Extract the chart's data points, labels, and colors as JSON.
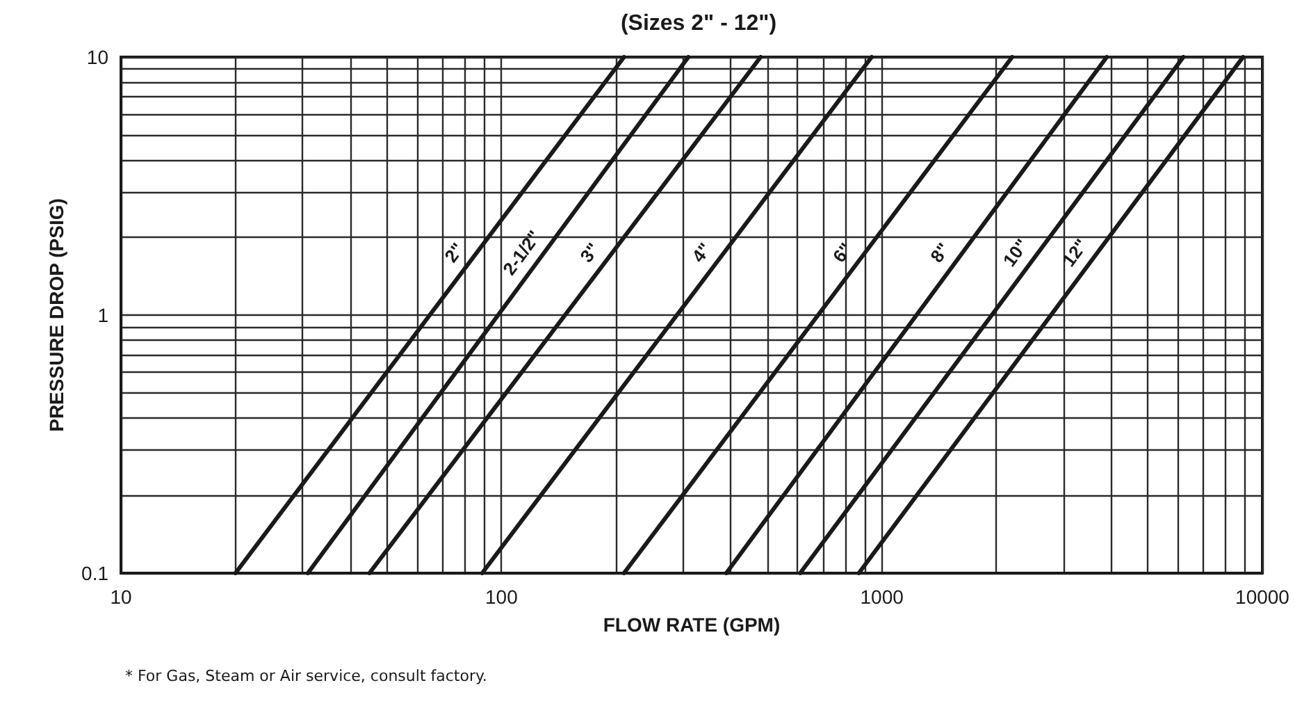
{
  "chart_data": {
    "type": "line",
    "title": "(Sizes 2\" - 12\")",
    "xlabel": "FLOW RATE (GPM)",
    "ylabel": "PRESSURE DROP (PSIG)",
    "annotations": [
      "* For Gas, Steam or Air service, consult factory."
    ],
    "log": "xy",
    "grid": true,
    "xlim": [
      10,
      10000
    ],
    "ylim": [
      0.1,
      10
    ],
    "xticks": [
      10,
      {
        "value": 20,
        "label": null
      },
      {
        "value": 30,
        "label": null
      },
      {
        "value": 40,
        "label": null
      },
      {
        "value": 50,
        "label": null
      },
      {
        "value": 60,
        "label": null
      },
      {
        "value": 70,
        "label": null
      },
      {
        "value": 80,
        "label": null
      },
      {
        "value": 90,
        "label": null
      },
      100,
      {
        "value": 200,
        "label": null
      },
      {
        "value": 300,
        "label": null
      },
      {
        "value": 400,
        "label": null
      },
      {
        "value": 500,
        "label": null
      },
      {
        "value": 600,
        "label": null
      },
      {
        "value": 700,
        "label": null
      },
      {
        "value": 800,
        "label": null
      },
      {
        "value": 900,
        "label": null
      },
      1000,
      {
        "value": 2000,
        "label": null
      },
      {
        "value": 3000,
        "label": null
      },
      {
        "value": 4000,
        "label": null
      },
      {
        "value": 5000,
        "label": null
      },
      {
        "value": 6000,
        "label": null
      },
      {
        "value": 7000,
        "label": null
      },
      {
        "value": 8000,
        "label": null
      },
      {
        "value": 9000,
        "label": null
      },
      10000
    ],
    "yticks": [
      0.1,
      {
        "value": 0.2,
        "label": null
      },
      {
        "value": 0.3,
        "label": null
      },
      {
        "value": 0.4,
        "label": null
      },
      {
        "value": 0.5,
        "label": null
      },
      {
        "value": 0.6,
        "label": null
      },
      {
        "value": 0.7,
        "label": null
      },
      {
        "value": 0.8,
        "label": null
      },
      {
        "value": 0.9,
        "label": null
      },
      1,
      {
        "value": 2,
        "label": null
      },
      {
        "value": 3,
        "label": null
      },
      {
        "value": 4,
        "label": null
      },
      {
        "value": 5,
        "label": null
      },
      {
        "value": 6,
        "label": null
      },
      {
        "value": 7,
        "label": null
      },
      {
        "value": 8,
        "label": null
      },
      {
        "value": 9,
        "label": null
      },
      10
    ],
    "series": [
      {
        "name": "2\"",
        "color": "#1a1a1a",
        "x": [
          20,
          210
        ],
        "values": [
          0.1,
          10
        ]
      },
      {
        "name": "2-1/2\"",
        "color": "#1a1a1a",
        "x": [
          31,
          310
        ],
        "values": [
          0.1,
          10
        ]
      },
      {
        "name": "3\"",
        "color": "#1a1a1a",
        "x": [
          45,
          480
        ],
        "values": [
          0.1,
          10
        ]
      },
      {
        "name": "4\"",
        "color": "#1a1a1a",
        "x": [
          89,
          940
        ],
        "values": [
          0.1,
          10
        ]
      },
      {
        "name": "6\"",
        "color": "#1a1a1a",
        "x": [
          210,
          2200
        ],
        "values": [
          0.1,
          10
        ]
      },
      {
        "name": "8\"",
        "color": "#1a1a1a",
        "x": [
          390,
          3900
        ],
        "values": [
          0.1,
          10
        ]
      },
      {
        "name": "10\"",
        "color": "#1a1a1a",
        "x": [
          610,
          6200
        ],
        "values": [
          0.1,
          10
        ]
      },
      {
        "name": "12\"",
        "color": "#1a1a1a",
        "x": [
          870,
          8900
        ],
        "values": [
          0.1,
          10
        ]
      }
    ]
  }
}
